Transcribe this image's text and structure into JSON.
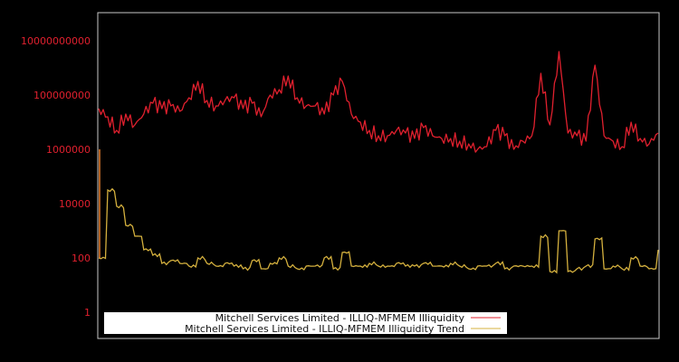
{
  "chart_data": {
    "type": "line",
    "title": "",
    "xlabel": "",
    "ylabel": "",
    "yscale": "log",
    "ylim": [
      0.5,
      40000000000
    ],
    "yticks": [
      {
        "value": 1,
        "label": "1"
      },
      {
        "value": 100,
        "label": "100"
      },
      {
        "value": 10000,
        "label": "10000"
      },
      {
        "value": 1000000,
        "label": "1000000"
      },
      {
        "value": 100000000,
        "label": "100000000"
      },
      {
        "value": 10000000000,
        "label": "10000000000"
      }
    ],
    "grid": false,
    "legend_position": "lower center",
    "x_index": [
      0,
      1,
      2,
      3,
      4,
      5,
      6,
      7,
      8,
      9,
      10,
      11,
      12,
      13,
      14,
      15,
      16,
      17,
      18,
      19,
      20,
      21,
      22,
      23,
      24,
      25,
      26,
      27,
      28,
      29,
      30,
      31,
      32,
      33,
      34,
      35,
      36,
      37,
      38,
      39,
      40,
      41,
      42,
      43,
      44,
      45,
      46,
      47,
      48,
      49,
      50,
      51,
      52,
      53,
      54,
      55,
      56,
      57,
      58,
      59,
      60,
      61,
      62
    ],
    "series": [
      {
        "name": "Mitchell Services Limited - ILLIQ-MFMEM Illiquidity",
        "color": "#e0202e",
        "log10_values": [
          7.5,
          7.2,
          6.7,
          7.3,
          6.9,
          7.3,
          7.7,
          7.5,
          7.6,
          7.4,
          7.9,
          8.5,
          7.8,
          7.6,
          7.8,
          7.9,
          7.5,
          7.7,
          7.2,
          8.0,
          8.2,
          8.7,
          7.9,
          7.6,
          7.6,
          7.3,
          8.0,
          8.5,
          7.3,
          7.0,
          6.7,
          6.5,
          6.5,
          6.7,
          6.6,
          6.4,
          6.8,
          6.5,
          6.4,
          6.4,
          6.3,
          6.2,
          6.0,
          6.1,
          6.7,
          6.5,
          6.0,
          6.3,
          6.5,
          8.8,
          6.9,
          9.6,
          6.6,
          6.5,
          6.3,
          9.1,
          6.5,
          6.3,
          6.1,
          7.0,
          6.4,
          6.2,
          6.6
        ],
        "approx_values_note": "values are 10^log10_values"
      },
      {
        "name": "Mitchell Services Limited - ILLIQ-MFMEM Illiquidity Trend",
        "color": "#d4b03e",
        "log10_values": [
          2.0,
          4.5,
          3.9,
          3.2,
          2.8,
          2.3,
          2.1,
          1.8,
          1.9,
          1.8,
          1.7,
          2.0,
          1.8,
          1.7,
          1.8,
          1.7,
          1.6,
          1.9,
          1.6,
          1.8,
          2.0,
          1.7,
          1.6,
          1.7,
          1.7,
          2.0,
          1.6,
          2.2,
          1.7,
          1.7,
          1.8,
          1.7,
          1.7,
          1.8,
          1.7,
          1.7,
          1.8,
          1.7,
          1.7,
          1.8,
          1.7,
          1.6,
          1.7,
          1.7,
          1.8,
          1.6,
          1.7,
          1.7,
          1.7,
          2.8,
          1.5,
          3.0,
          1.5,
          1.6,
          1.7,
          2.7,
          1.6,
          1.7,
          1.6,
          2.0,
          1.7,
          1.6,
          2.3
        ]
      }
    ]
  },
  "legend": {
    "items": [
      {
        "label": "Mitchell Services Limited - ILLIQ-MFMEM Illiquidity",
        "color": "#e0202e"
      },
      {
        "label": "Mitchell Services Limited - ILLIQ-MFMEM Illiquidity Trend",
        "color": "#d4b03e"
      }
    ]
  },
  "colors": {
    "background": "#000000",
    "frame": "#c8c8c8",
    "tick_label": "#e0202e",
    "legend_bg": "#ffffff"
  }
}
